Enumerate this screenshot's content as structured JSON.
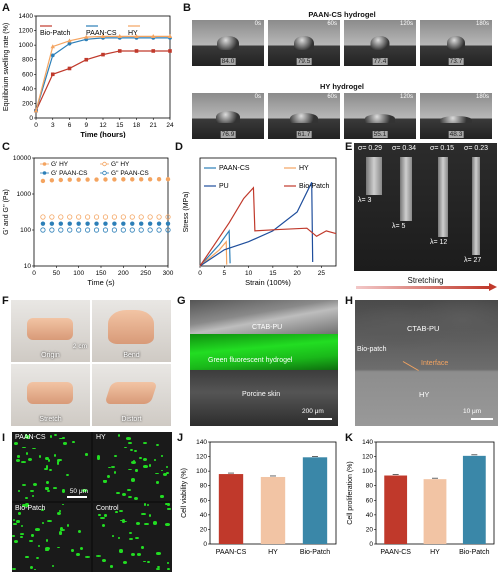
{
  "panels": {
    "A": "A",
    "B": "B",
    "C": "C",
    "D": "D",
    "E": "E",
    "F": "F",
    "G": "G",
    "H": "H",
    "I": "I",
    "J": "J",
    "K": "K"
  },
  "colors": {
    "bio": "#c0392b",
    "paan": "#2c7fb8",
    "hy": "#f4a460",
    "pu": "#1f4e9c",
    "peach": "#f2c4a4",
    "teal": "#3a87a8",
    "green": "#22dd22"
  },
  "panelA": {
    "chart_data": {
      "type": "line",
      "title": "",
      "xlabel": "Time  (hours)",
      "ylabel": "Equilibrium swelling rate (%)",
      "x": [
        0,
        3,
        6,
        9,
        12,
        15,
        18,
        21,
        24
      ],
      "ylim": [
        0,
        1400
      ],
      "xticks": [
        "0",
        "3",
        "6",
        "9",
        "12",
        "15",
        "18",
        "21",
        "24"
      ],
      "yticks": [
        "0",
        "200",
        "400",
        "600",
        "800",
        "1000",
        "1200",
        "1400"
      ],
      "series": [
        {
          "name": "Bio-Patch",
          "values": [
            100,
            600,
            680,
            800,
            870,
            920,
            920,
            920,
            920
          ]
        },
        {
          "name": "PAAN-CS",
          "values": [
            100,
            860,
            1020,
            1080,
            1100,
            1100,
            1100,
            1100,
            1100
          ]
        },
        {
          "name": "HY",
          "values": [
            100,
            980,
            1060,
            1110,
            1120,
            1120,
            1120,
            1120,
            1120
          ]
        }
      ]
    }
  },
  "panelB": {
    "title1": "PAAN-CS hydrogel",
    "title2": "HY hydrogel",
    "times": [
      "0s",
      "60s",
      "120s",
      "180s"
    ],
    "row1": [
      "84.0",
      "79.5",
      "77.4",
      "73.7"
    ],
    "row2": [
      "76.9",
      "61.7",
      "55.1",
      "48.3"
    ]
  },
  "panelC": {
    "chart_data": {
      "type": "scatter",
      "title": "",
      "xlabel": "Time (s)",
      "ylabel": "G' and G'' (Pa)",
      "yscale": "log",
      "ylim": [
        10,
        10000
      ],
      "xlim": [
        0,
        300
      ],
      "xticks": [
        "0",
        "50",
        "100",
        "150",
        "200",
        "250",
        "300"
      ],
      "yticks": [
        "10",
        "100",
        "1000",
        "10000"
      ],
      "x": [
        20,
        40,
        60,
        80,
        100,
        120,
        140,
        160,
        180,
        200,
        220,
        240,
        260,
        280,
        300
      ],
      "series": [
        {
          "name": "G' HY",
          "values": [
            2300,
            2400,
            2450,
            2500,
            2500,
            2520,
            2520,
            2530,
            2540,
            2550,
            2550,
            2560,
            2560,
            2570,
            2570
          ]
        },
        {
          "name": "G'' HY",
          "values": [
            230,
            230,
            230,
            230,
            230,
            230,
            230,
            230,
            230,
            230,
            230,
            230,
            230,
            230,
            230
          ]
        },
        {
          "name": "G' PAAN-CS",
          "values": [
            150,
            150,
            150,
            150,
            150,
            150,
            150,
            150,
            150,
            150,
            150,
            150,
            150,
            150,
            150
          ]
        },
        {
          "name": "G'' PAAN-CS",
          "values": [
            100,
            100,
            100,
            100,
            100,
            100,
            100,
            100,
            100,
            100,
            100,
            100,
            100,
            100,
            100
          ]
        }
      ]
    }
  },
  "panelD": {
    "chart_data": {
      "type": "line",
      "title": "",
      "xlabel": "Strain (100%)",
      "ylabel": "Stress (MPa)",
      "xlim": [
        0,
        28
      ],
      "ylim": [
        0,
        0.8
      ],
      "xticks": [
        "0",
        "5",
        "10",
        "15",
        "20",
        "25"
      ],
      "series": [
        {
          "name": "PAAN-CS",
          "x": [
            0,
            2,
            4,
            6,
            6.2
          ],
          "values": [
            0,
            0.08,
            0.16,
            0.26,
            0.02
          ]
        },
        {
          "name": "HY",
          "x": [
            0,
            2,
            4,
            5.4,
            5.5
          ],
          "values": [
            0,
            0.06,
            0.12,
            0.18,
            0.01
          ]
        },
        {
          "name": "PU",
          "x": [
            0,
            5,
            10,
            15,
            20,
            23,
            23.2
          ],
          "values": [
            0,
            0.12,
            0.18,
            0.26,
            0.4,
            0.62,
            0.03
          ]
        },
        {
          "name": "Bio-Patch",
          "x": [
            0,
            3,
            6,
            9,
            11,
            11.3,
            16,
            22,
            24,
            26,
            28
          ],
          "values": [
            0,
            0.16,
            0.32,
            0.5,
            0.58,
            0.26,
            0.27,
            0.28,
            0.22,
            0.26,
            0.24
          ]
        }
      ]
    }
  },
  "panelE": {
    "sigmas": [
      "σ= 0.29",
      "σ= 0.34",
      "σ= 0.15",
      "σ= 0.23"
    ],
    "lambdas": [
      "λ= 3",
      "λ= 5",
      "λ= 12",
      "λ= 27"
    ],
    "caption": "Stretching"
  },
  "panelF": {
    "labels": [
      "Origin",
      "Bend",
      "Stretch",
      "Distort"
    ],
    "scale": "2 cm"
  },
  "panelG": {
    "labels": [
      "CTAB-PU",
      "Green fluorescent hydrogel",
      "Porcine skin"
    ],
    "scale": "200 μm"
  },
  "panelH": {
    "labels": [
      "CTAB-PU",
      "Bio-patch",
      "Interface",
      "HY"
    ],
    "scale": "10 μm"
  },
  "panelI": {
    "labels": [
      "PAAN-CS",
      "HY",
      "Bio-Patch",
      "Control"
    ],
    "scale": "50 μm"
  },
  "panelJ": {
    "chart_data": {
      "type": "bar",
      "title": "",
      "ylabel": "Cell viability (%)",
      "categories": [
        "PAAN-CS",
        "HY",
        "Bio-Patch"
      ],
      "values": [
        96,
        92,
        119
      ],
      "ylim": [
        0,
        140
      ],
      "yticks": [
        "0",
        "20",
        "40",
        "60",
        "80",
        "100",
        "120",
        "140"
      ]
    }
  },
  "panelK": {
    "chart_data": {
      "type": "bar",
      "title": "",
      "ylabel": "Cell proliferation (%)",
      "categories": [
        "PAAN-CS",
        "HY",
        "Bio-Patch"
      ],
      "values": [
        94,
        89,
        121
      ],
      "ylim": [
        0,
        140
      ],
      "yticks": [
        "0",
        "20",
        "40",
        "60",
        "80",
        "100",
        "120",
        "140"
      ]
    }
  }
}
